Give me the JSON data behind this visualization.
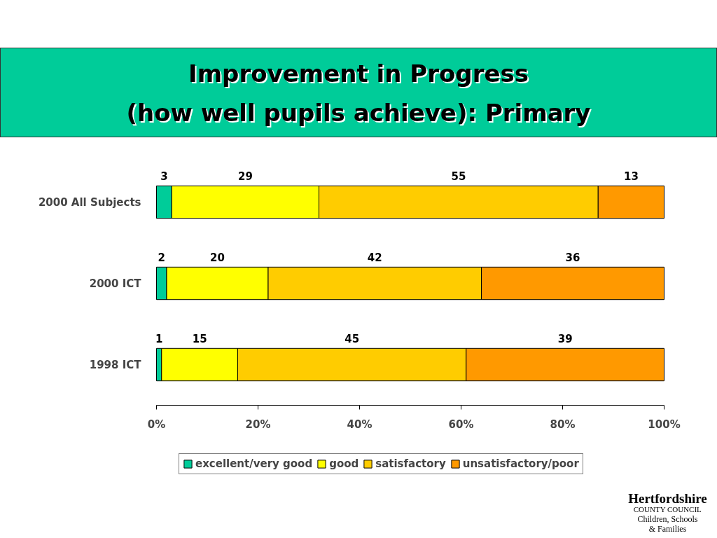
{
  "chart_data": {
    "type": "bar",
    "orientation": "horizontal",
    "stacked": true,
    "title": "Improvement in Progress\n(how well pupils achieve): Primary",
    "categories": [
      "2000 All Subjects",
      "2000 ICT",
      "1998 ICT"
    ],
    "series": [
      {
        "name": "excellent/very good",
        "color": "#00cc99",
        "values": [
          3,
          2,
          1
        ]
      },
      {
        "name": "good",
        "color": "#ffff00",
        "values": [
          29,
          20,
          15
        ]
      },
      {
        "name": "satisfactory",
        "color": "#ffcc00",
        "values": [
          55,
          42,
          45
        ]
      },
      {
        "name": "unsatisfactory/poor",
        "color": "#ff9900",
        "values": [
          13,
          36,
          39
        ]
      }
    ],
    "xlim": [
      0,
      100
    ],
    "xticks": [
      {
        "value": 0,
        "label": "0%"
      },
      {
        "value": 20,
        "label": "20%"
      },
      {
        "value": 40,
        "label": "40%"
      },
      {
        "value": 60,
        "label": "60%"
      },
      {
        "value": 80,
        "label": "80%"
      },
      {
        "value": 100,
        "label": "100%"
      }
    ],
    "data_labels": true,
    "grid": false,
    "legend": "bottom",
    "annotations": [
      "Hertfordshire",
      "COUNTY COUNCIL",
      "Children, Schools",
      "& Families"
    ]
  }
}
